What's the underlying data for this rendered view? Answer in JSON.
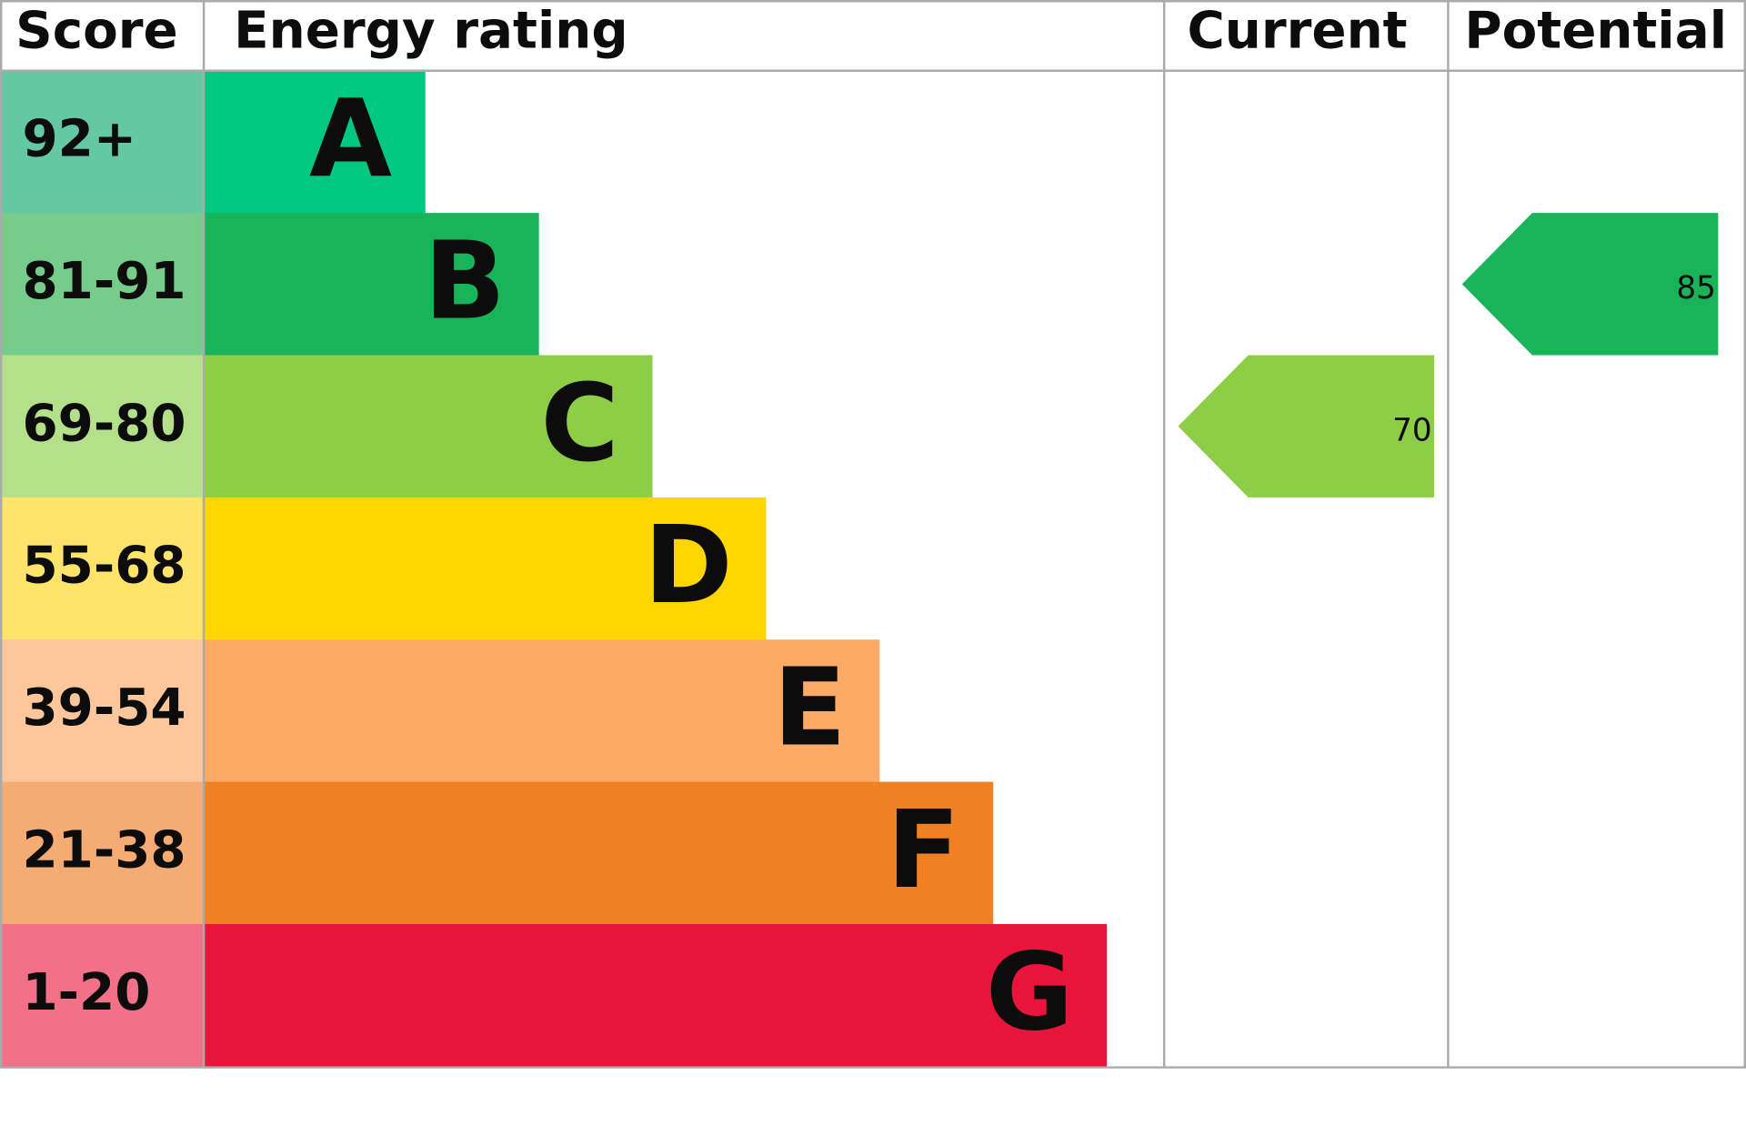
{
  "header": {
    "score": "Score",
    "rating": "Energy rating",
    "current": "Current",
    "potential": "Potential"
  },
  "bands": [
    {
      "score": "92+",
      "letter": "A",
      "color": "#00c781",
      "score_color": "#64c8a4"
    },
    {
      "score": "81-91",
      "letter": "B",
      "color": "#19b459",
      "score_color": "#75cc8b"
    },
    {
      "score": "69-80",
      "letter": "C",
      "color": "#8dce46",
      "score_color": "#b5e08a"
    },
    {
      "score": "55-68",
      "letter": "D",
      "color": "#ffd500",
      "score_color": "#ffe36a"
    },
    {
      "score": "39-54",
      "letter": "E",
      "color": "#fcaa65",
      "score_color": "#fdc69b"
    },
    {
      "score": "21-38",
      "letter": "F",
      "color": "#ef8023",
      "score_color": "#f4ac74"
    },
    {
      "score": "1-20",
      "letter": "G",
      "color": "#e9153b",
      "score_color": "#f27189"
    }
  ],
  "current": 70,
  "potential": 85
}
